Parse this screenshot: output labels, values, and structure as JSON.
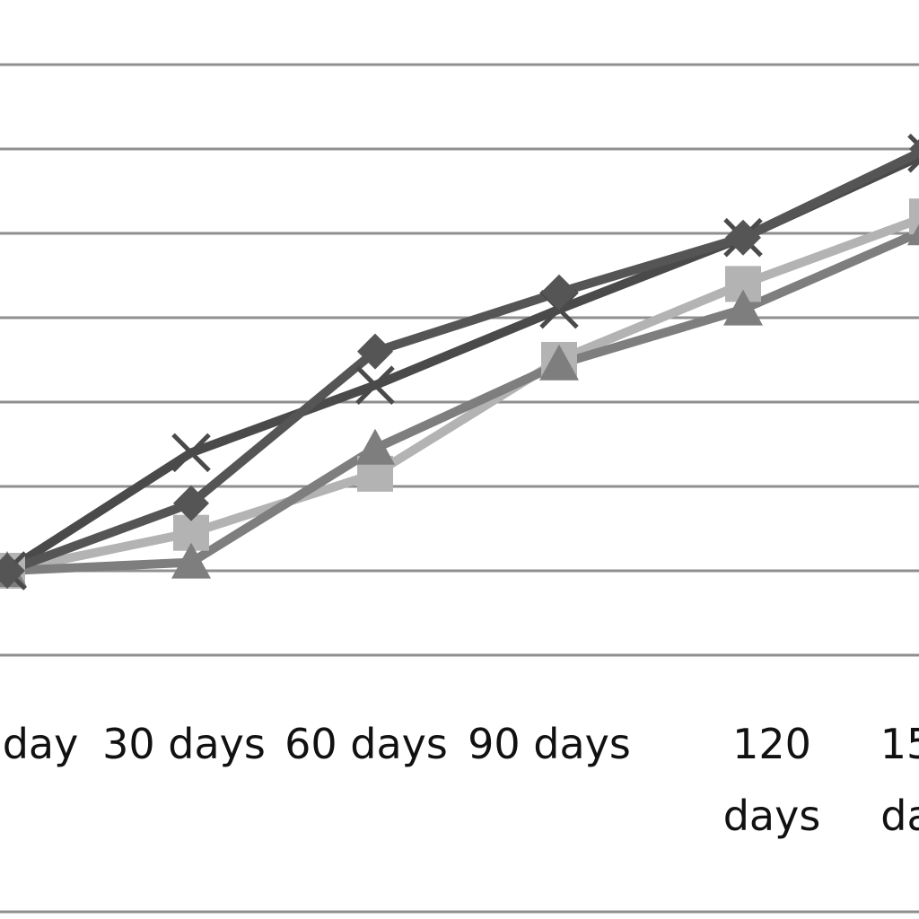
{
  "chart_data": {
    "type": "line",
    "title": "",
    "xlabel": "",
    "ylabel": "",
    "categories": [
      [
        "day"
      ],
      [
        "30 days"
      ],
      [
        "60 days"
      ],
      [
        "90 days"
      ],
      [
        "120",
        "days"
      ],
      [
        "15",
        "da"
      ]
    ],
    "ylim": [
      0,
      7
    ],
    "grid": true,
    "legend": "none",
    "series": [
      {
        "marker": "diamond",
        "color": "#555555",
        "values": [
          1.0,
          1.8,
          3.6,
          4.3,
          4.95,
          6.0
        ]
      },
      {
        "marker": "x",
        "color": "#4a4a4a",
        "values": [
          1.0,
          2.4,
          3.2,
          4.1,
          4.95,
          5.95
        ]
      },
      {
        "marker": "triangle",
        "color": "#7e7e7e",
        "values": [
          1.0,
          1.1,
          2.45,
          3.45,
          4.1,
          5.05
        ]
      },
      {
        "marker": "square",
        "color": "#b3b3b3",
        "values": [
          1.0,
          1.45,
          2.15,
          3.5,
          4.4,
          5.2
        ]
      }
    ]
  }
}
